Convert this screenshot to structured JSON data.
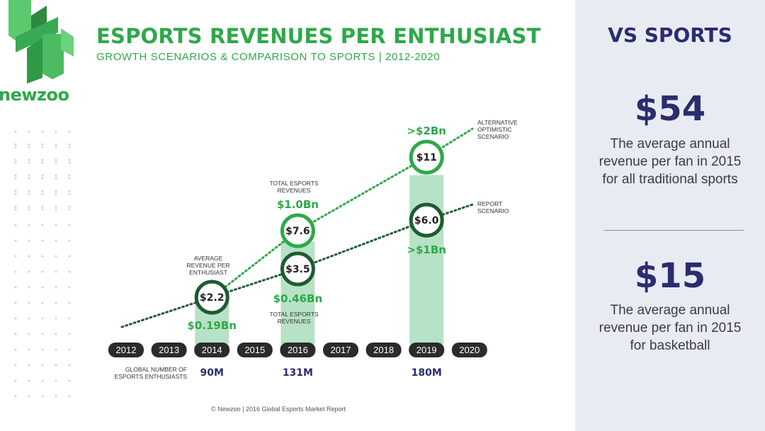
{
  "brand": {
    "name": "newzoo"
  },
  "header": {
    "title": "ESPORTS REVENUES PER ENTHUSIAST",
    "subtitle": "GROWTH SCENARIOS & COMPARISON TO SPORTS | 2012-2020"
  },
  "sidebar": {
    "title": "VS SPORTS",
    "stat1_value": "$54",
    "stat1_desc": "The average annual revenue per fan in 2015 for all traditional sports",
    "stat2_value": "$15",
    "stat2_desc": "The average annual revenue per fan in 2015 for basketball"
  },
  "footer": {
    "text": "© Newzoo | 2016 Global Esports Market Report"
  },
  "colors": {
    "green": "#2ea84a",
    "dark_green": "#1f5a33",
    "bar": "#b7e2c5",
    "navy": "#2a2d6e",
    "pill": "#2b2b2b"
  },
  "chart_data": {
    "type": "bar",
    "years": [
      "2012",
      "2013",
      "2014",
      "2015",
      "2016",
      "2017",
      "2018",
      "2019",
      "2020"
    ],
    "bars": [
      {
        "year": "2014",
        "report": "$2.2",
        "optimistic": null,
        "report_value": 2.2,
        "optimistic_value": null,
        "top_label": "",
        "bottom_label": "$0.19Bn",
        "enthusiasts": "90M"
      },
      {
        "year": "2016",
        "report": "$3.5",
        "optimistic": "$7.6",
        "report_value": 3.5,
        "optimistic_value": 7.6,
        "top_label": "$1.0Bn",
        "bottom_label": "$0.46Bn",
        "enthusiasts": "131M"
      },
      {
        "year": "2019",
        "report": "$6.0",
        "optimistic": "$11",
        "report_value": 6.0,
        "optimistic_value": 11,
        "top_label": ">$2Bn",
        "bottom_label": ">$1Bn",
        "enthusiasts": "180M"
      }
    ],
    "annotations": {
      "avg_revenue": "AVERAGE REVENUE PER ENTHUSIAST",
      "total_top": "TOTAL ESPORTS REVENUES",
      "total_bottom": "TOTAL ESPORTS REVENUES",
      "alternative": "ALTERNATIVE OPTIMISTIC SCENARIO",
      "report": "REPORT SCENARIO",
      "enthusiasts_label": "GLOBAL NUMBER OF ESPORTS ENTHUSIASTS"
    },
    "series": [
      {
        "name": "ALTERNATIVE OPTIMISTIC SCENARIO",
        "values": [
          2.2,
          7.6,
          11
        ]
      },
      {
        "name": "REPORT SCENARIO",
        "values": [
          2.2,
          3.5,
          6.0
        ]
      }
    ]
  }
}
